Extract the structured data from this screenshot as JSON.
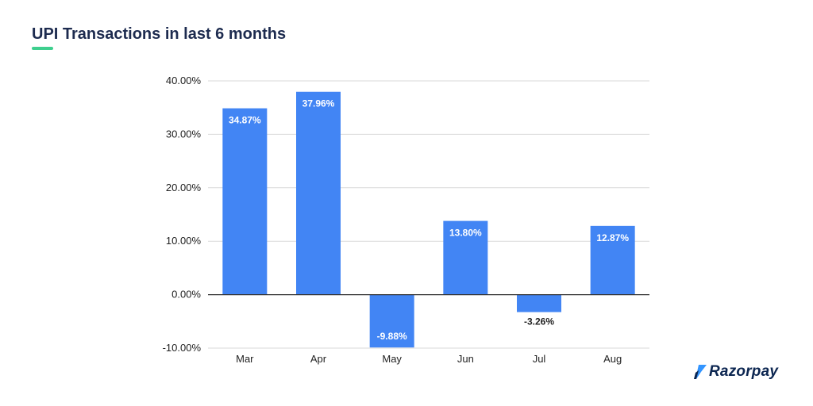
{
  "title": "UPI Transactions in last 6 months",
  "colors": {
    "title": "#1d2b4f",
    "accent_underline": "#3ecf8e",
    "bar": "#4285f4",
    "label_inside": "#ffffff",
    "label_outside": "#222222",
    "grid": "#d9d9d9",
    "baseline": "#333333",
    "brand": "#0c2651",
    "brand_mark": "#3395ff"
  },
  "brand": {
    "name": "Razorpay",
    "logo_icon": "razorpay-logo-icon"
  },
  "chart_data": {
    "type": "bar",
    "title": "UPI Transactions in last 6 months",
    "xlabel": "",
    "ylabel": "",
    "categories": [
      "Mar",
      "Apr",
      "May",
      "Jun",
      "Jul",
      "Aug"
    ],
    "values": [
      34.87,
      37.96,
      -9.88,
      13.8,
      -3.26,
      12.87
    ],
    "data_labels": [
      "34.87%",
      "37.96%",
      "-9.88%",
      "13.80%",
      "-3.26%",
      "12.87%"
    ],
    "ylim": [
      -10,
      40
    ],
    "yticks": [
      -10,
      0,
      10,
      20,
      30,
      40
    ],
    "ytick_labels": [
      "-10.00%",
      "0.00%",
      "10.00%",
      "20.00%",
      "30.00%",
      "40.00%"
    ],
    "grid": true,
    "legend": "none"
  }
}
